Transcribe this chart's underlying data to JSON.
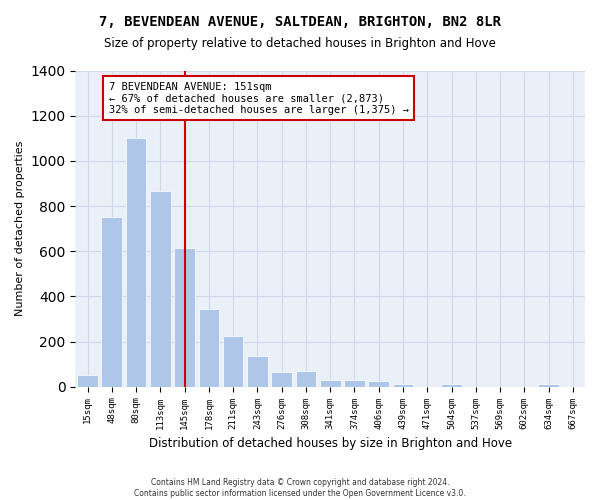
{
  "title": "7, BEVENDEAN AVENUE, SALTDEAN, BRIGHTON, BN2 8LR",
  "subtitle": "Size of property relative to detached houses in Brighton and Hove",
  "xlabel": "Distribution of detached houses by size in Brighton and Hove",
  "ylabel": "Number of detached properties",
  "footer_line1": "Contains HM Land Registry data © Crown copyright and database right 2024.",
  "footer_line2": "Contains public sector information licensed under the Open Government Licence v3.0.",
  "annotation_line1": "7 BEVENDEAN AVENUE: 151sqm",
  "annotation_line2": "← 67% of detached houses are smaller (2,873)",
  "annotation_line3": "32% of semi-detached houses are larger (1,375) →",
  "bar_color": "#aec6e8",
  "vline_color": "#cc0000",
  "grid_color": "#d0d8e8",
  "background_color": "#eaf0f8",
  "categories": [
    "15sqm",
    "48sqm",
    "80sqm",
    "113sqm",
    "145sqm",
    "178sqm",
    "211sqm",
    "243sqm",
    "276sqm",
    "308sqm",
    "341sqm",
    "374sqm",
    "406sqm",
    "439sqm",
    "471sqm",
    "504sqm",
    "537sqm",
    "569sqm",
    "602sqm",
    "634sqm",
    "667sqm"
  ],
  "values": [
    50,
    750,
    1100,
    865,
    615,
    345,
    225,
    135,
    65,
    70,
    30,
    30,
    25,
    13,
    0,
    13,
    0,
    0,
    0,
    13,
    0
  ],
  "ylim": [
    0,
    1400
  ],
  "vline_x_index": 4
}
